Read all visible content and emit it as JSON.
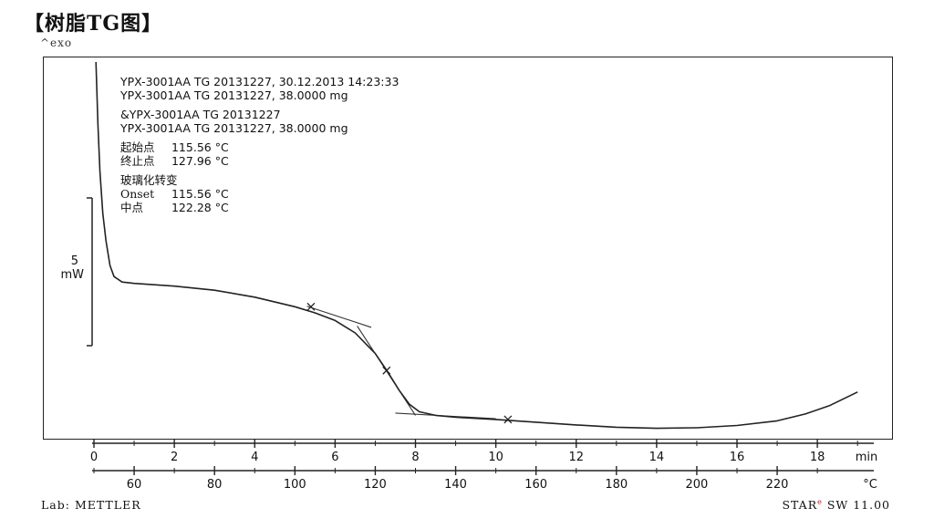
{
  "page": {
    "title": "【树脂TG图】",
    "exo_label": "^exo",
    "lab_label": "Lab: METTLER",
    "software_label": "STAR",
    "software_sup": "e",
    "software_version": "SW 11.00"
  },
  "info": {
    "line1": "YPX-3001AA TG 20131227, 30.12.2013 14:23:33",
    "line2": "YPX-3001AA TG 20131227, 38.0000 mg",
    "line3": "&YPX-3001AA TG 20131227",
    "line4": "YPX-3001AA TG 20131227, 38.0000 mg",
    "onset_cn_label": "起始点",
    "onset_cn_value": "115.56 °C",
    "end_cn_label": "终止点",
    "end_cn_value": "127.96 °C",
    "glass_transition_label": "玻璃化转变",
    "onset_en_label": "Onset",
    "onset_en_value": "115.56 °C",
    "midpoint_label": "中点",
    "midpoint_value": "122.28 °C"
  },
  "scale_bar": {
    "value": "5",
    "unit": "mW"
  },
  "chart_data": {
    "type": "line",
    "title": "",
    "x_time": {
      "label": "min",
      "range": [
        0,
        19.2
      ],
      "ticks": [
        0,
        2,
        4,
        6,
        8,
        10,
        12,
        14,
        16,
        18
      ]
    },
    "x_temp": {
      "label": "°C",
      "range": [
        50,
        242
      ],
      "ticks": [
        60,
        80,
        100,
        120,
        140,
        160,
        180,
        200,
        220
      ]
    },
    "y": {
      "label": "mW",
      "range": [
        -8.1,
        5.7
      ],
      "scale_bar": 5
    },
    "series": [
      {
        "points_min_mw": [
          [
            0.05,
            5.5
          ],
          [
            0.1,
            3.2
          ],
          [
            0.15,
            1.5
          ],
          [
            0.22,
            0.0
          ],
          [
            0.3,
            -1.0
          ],
          [
            0.4,
            -1.9
          ],
          [
            0.5,
            -2.3
          ],
          [
            0.7,
            -2.5
          ],
          [
            1.0,
            -2.55
          ],
          [
            2.0,
            -2.65
          ],
          [
            3.0,
            -2.8
          ],
          [
            4.0,
            -3.05
          ],
          [
            5.0,
            -3.4
          ],
          [
            5.5,
            -3.62
          ],
          [
            6.0,
            -3.9
          ],
          [
            6.5,
            -4.35
          ],
          [
            7.0,
            -5.1
          ],
          [
            7.3,
            -5.75
          ],
          [
            7.6,
            -6.45
          ],
          [
            7.85,
            -6.95
          ],
          [
            8.1,
            -7.22
          ],
          [
            8.5,
            -7.35
          ],
          [
            9.0,
            -7.42
          ],
          [
            10.0,
            -7.5
          ],
          [
            11.0,
            -7.6
          ],
          [
            12.0,
            -7.7
          ],
          [
            13.0,
            -7.78
          ],
          [
            14.0,
            -7.82
          ],
          [
            15.0,
            -7.8
          ],
          [
            16.0,
            -7.72
          ],
          [
            17.0,
            -7.55
          ],
          [
            17.7,
            -7.3
          ],
          [
            18.3,
            -7.0
          ],
          [
            19.0,
            -6.5
          ]
        ]
      }
    ],
    "tangents": [
      {
        "from": [
          5.3,
          -3.38
        ],
        "to": [
          6.9,
          -4.15
        ]
      },
      {
        "from": [
          6.55,
          -4.1
        ],
        "to": [
          8.0,
          -7.35
        ]
      },
      {
        "from": [
          7.5,
          -7.27
        ],
        "to": [
          10.0,
          -7.47
        ]
      }
    ],
    "markers": [
      {
        "x": 5.4,
        "y": -3.4
      },
      {
        "x": 7.28,
        "y": -5.72
      },
      {
        "x": 10.3,
        "y": -7.5
      }
    ]
  }
}
